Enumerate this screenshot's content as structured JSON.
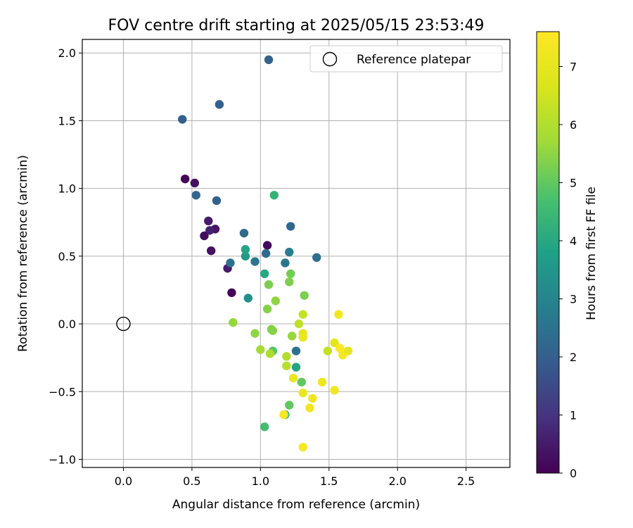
{
  "chart_data": {
    "type": "scatter",
    "title": "FOV centre drift starting at 2025/05/15 23:53:49",
    "xlabel": "Angular distance from reference (arcmin)",
    "ylabel": "Rotation from reference (arcmin)",
    "xlim": [
      -0.3,
      2.82
    ],
    "ylim": [
      -1.06,
      2.1
    ],
    "xticks": [
      "0.0",
      "0.5",
      "1.0",
      "1.5",
      "2.0",
      "2.5"
    ],
    "xtick_values": [
      0,
      0.5,
      1.0,
      1.5,
      2.0,
      2.5
    ],
    "yticks": [
      "−1.0",
      "−0.5",
      "0.0",
      "0.5",
      "1.0",
      "1.5",
      "2.0"
    ],
    "ytick_values": [
      -1.0,
      -0.5,
      0.0,
      0.5,
      1.0,
      1.5,
      2.0
    ],
    "grid": true,
    "legend": {
      "position": "top-right",
      "entries": [
        "Reference platepar"
      ]
    },
    "reference_point": {
      "x": 0.0,
      "y": 0.0,
      "label": "Reference platepar"
    },
    "colorbar": {
      "label": "Hours from first FF file",
      "range": [
        0,
        7.6
      ],
      "ticks": [
        "0",
        "1",
        "2",
        "3",
        "4",
        "5",
        "6",
        "7"
      ],
      "tick_values": [
        0,
        1,
        2,
        3,
        4,
        5,
        6,
        7
      ],
      "colormap": "viridis"
    },
    "points": [
      {
        "x": 0.45,
        "y": 1.07,
        "h": 0.1
      },
      {
        "x": 0.52,
        "y": 1.04,
        "h": 0.3
      },
      {
        "x": 0.62,
        "y": 0.76,
        "h": 0.5
      },
      {
        "x": 0.67,
        "y": 0.7,
        "h": 0.4
      },
      {
        "x": 0.63,
        "y": 0.69,
        "h": 0.6
      },
      {
        "x": 0.59,
        "y": 0.65,
        "h": 0.2
      },
      {
        "x": 0.64,
        "y": 0.54,
        "h": 0.3
      },
      {
        "x": 0.76,
        "y": 0.41,
        "h": 0.5
      },
      {
        "x": 0.79,
        "y": 0.23,
        "h": 0.1
      },
      {
        "x": 1.05,
        "y": 0.58,
        "h": 0.2
      },
      {
        "x": 0.43,
        "y": 1.51,
        "h": 2.0
      },
      {
        "x": 0.7,
        "y": 1.62,
        "h": 2.0
      },
      {
        "x": 1.06,
        "y": 1.95,
        "h": 2.1
      },
      {
        "x": 0.53,
        "y": 0.95,
        "h": 2.2
      },
      {
        "x": 0.68,
        "y": 0.91,
        "h": 2.1
      },
      {
        "x": 1.22,
        "y": 0.72,
        "h": 2.2
      },
      {
        "x": 0.88,
        "y": 0.67,
        "h": 2.3
      },
      {
        "x": 1.04,
        "y": 0.52,
        "h": 2.3
      },
      {
        "x": 1.41,
        "y": 0.49,
        "h": 2.4
      },
      {
        "x": 0.78,
        "y": 0.45,
        "h": 2.5
      },
      {
        "x": 0.96,
        "y": 0.46,
        "h": 2.6
      },
      {
        "x": 1.18,
        "y": 0.45,
        "h": 2.6
      },
      {
        "x": 1.21,
        "y": 0.53,
        "h": 2.8
      },
      {
        "x": 1.26,
        "y": -0.2,
        "h": 2.5
      },
      {
        "x": 0.91,
        "y": 0.19,
        "h": 3.3
      },
      {
        "x": 0.89,
        "y": 0.5,
        "h": 3.6
      },
      {
        "x": 0.89,
        "y": 0.55,
        "h": 3.9
      },
      {
        "x": 1.03,
        "y": 0.37,
        "h": 4.0
      },
      {
        "x": 1.26,
        "y": -0.32,
        "h": 3.9
      },
      {
        "x": 1.1,
        "y": 0.95,
        "h": 4.3
      },
      {
        "x": 1.18,
        "y": -0.67,
        "h": 4.4
      },
      {
        "x": 1.03,
        "y": -0.76,
        "h": 4.6
      },
      {
        "x": 1.21,
        "y": -0.6,
        "h": 5.0
      },
      {
        "x": 1.3,
        "y": -0.43,
        "h": 5.0
      },
      {
        "x": 1.09,
        "y": -0.2,
        "h": 4.9
      },
      {
        "x": 1.22,
        "y": 0.37,
        "h": 5.2
      },
      {
        "x": 1.06,
        "y": 0.29,
        "h": 5.3
      },
      {
        "x": 1.21,
        "y": 0.31,
        "h": 5.3
      },
      {
        "x": 1.32,
        "y": 0.21,
        "h": 5.3
      },
      {
        "x": 1.11,
        "y": 0.17,
        "h": 5.5
      },
      {
        "x": 1.05,
        "y": 0.11,
        "h": 5.4
      },
      {
        "x": 0.8,
        "y": 0.01,
        "h": 5.6
      },
      {
        "x": 0.96,
        "y": -0.07,
        "h": 5.5
      },
      {
        "x": 1.08,
        "y": -0.04,
        "h": 5.4
      },
      {
        "x": 1.09,
        "y": -0.05,
        "h": 5.4
      },
      {
        "x": 1.23,
        "y": -0.09,
        "h": 5.6
      },
      {
        "x": 1.0,
        "y": -0.19,
        "h": 5.8
      },
      {
        "x": 1.07,
        "y": -0.22,
        "h": 5.9
      },
      {
        "x": 1.19,
        "y": -0.24,
        "h": 6.0
      },
      {
        "x": 1.19,
        "y": -0.31,
        "h": 6.1
      },
      {
        "x": 1.28,
        "y": 0.0,
        "h": 6.2
      },
      {
        "x": 1.31,
        "y": 0.07,
        "h": 6.3
      },
      {
        "x": 1.49,
        "y": -0.2,
        "h": 6.3
      },
      {
        "x": 1.31,
        "y": -0.07,
        "h": 7.0
      },
      {
        "x": 1.31,
        "y": -0.1,
        "h": 7.1
      },
      {
        "x": 1.54,
        "y": -0.14,
        "h": 7.0
      },
      {
        "x": 1.57,
        "y": 0.07,
        "h": 7.3
      },
      {
        "x": 1.58,
        "y": -0.18,
        "h": 7.5
      },
      {
        "x": 1.6,
        "y": -0.23,
        "h": 7.4
      },
      {
        "x": 1.64,
        "y": -0.2,
        "h": 7.0
      },
      {
        "x": 1.24,
        "y": -0.4,
        "h": 7.1
      },
      {
        "x": 1.45,
        "y": -0.43,
        "h": 7.2
      },
      {
        "x": 1.54,
        "y": -0.49,
        "h": 7.3
      },
      {
        "x": 1.31,
        "y": -0.51,
        "h": 7.1
      },
      {
        "x": 1.38,
        "y": -0.55,
        "h": 7.2
      },
      {
        "x": 1.36,
        "y": -0.62,
        "h": 7.3
      },
      {
        "x": 1.17,
        "y": -0.67,
        "h": 7.4
      },
      {
        "x": 1.31,
        "y": -0.91,
        "h": 7.4
      }
    ]
  }
}
